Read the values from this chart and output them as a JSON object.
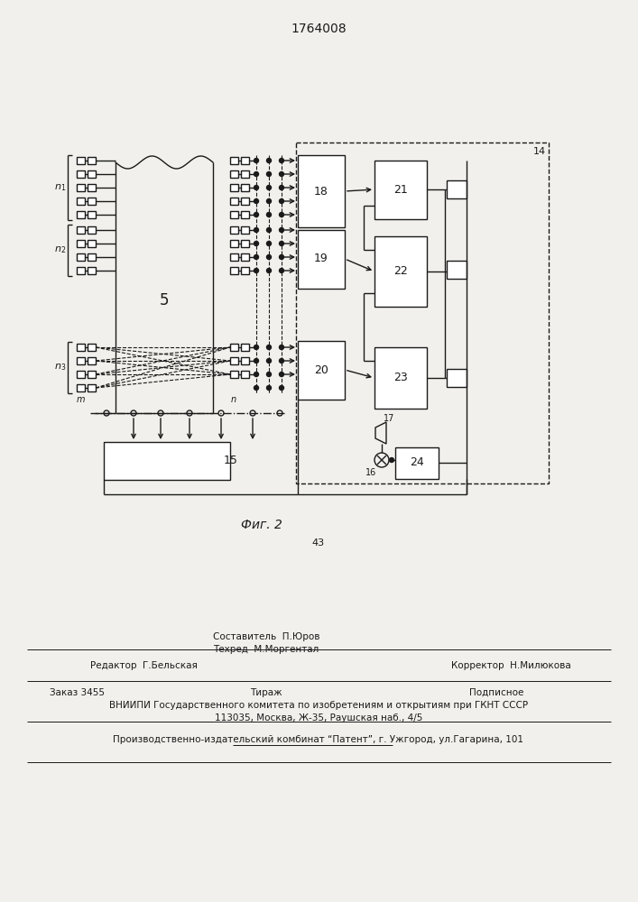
{
  "patent_number": "1764008",
  "fig_label": "Фиг. 2",
  "page_number": "43",
  "bg_color": "#f2f0ec",
  "line_color": "#1a1a1a",
  "editor_line": "Редактор  Г.Бельская",
  "composer_line": "Составитель  П.Юров",
  "tech_line": "Техред  М.Моргентал",
  "corrector_line": "Корректор  Н.Милюкова",
  "order_line": "Заказ 3455",
  "tirazh_line": "Тираж",
  "podpisnoe_line": "Подписное",
  "vnipi_line": "ВНИИПИ Государственного комитета по изобретениям и открытиям при ГКНТ СССР",
  "address_line": "113035, Москва, Ж-35, Раушская наб., 4/5",
  "production_line": "Производственно-издательский комбинат “Патент”, г. Ужгород, ул.Гагарина, 101"
}
